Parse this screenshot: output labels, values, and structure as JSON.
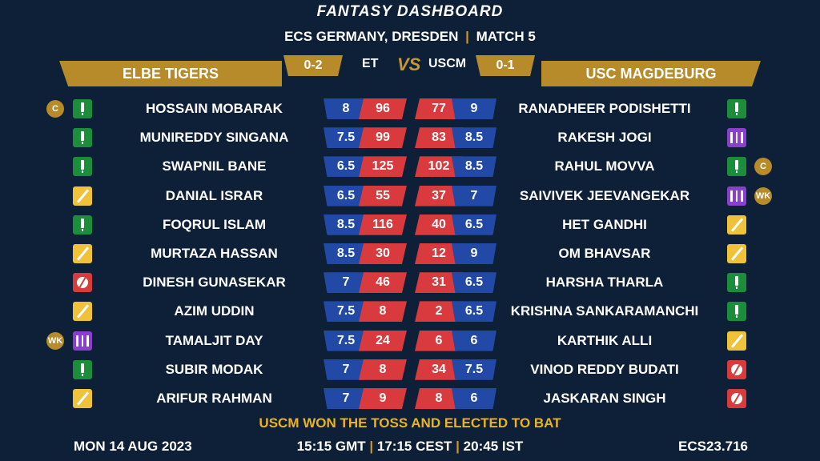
{
  "header": {
    "title": "FANTASY DASHBOARD",
    "subtitle_left": "ECS GERMANY, DRESDEN",
    "subtitle_sep": "|",
    "subtitle_right": "MATCH 5"
  },
  "teams": {
    "left": {
      "name": "ELBE TIGERS",
      "score": "0-2",
      "abbr": "ET"
    },
    "right": {
      "name": "USC MAGDEBURG",
      "score": "0-1",
      "abbr": "USCM"
    },
    "vs_label": "VS"
  },
  "left_players": [
    {
      "name": "HOSSAIN MOBARAK",
      "credits": "8",
      "points": "96",
      "role": "bat",
      "role_icon": "bat-icon",
      "badge": "C"
    },
    {
      "name": "MUNIREDDY SINGANA",
      "credits": "7.5",
      "points": "99",
      "role": "bat",
      "role_icon": "bat-icon",
      "badge": ""
    },
    {
      "name": "SWAPNIL BANE",
      "credits": "6.5",
      "points": "125",
      "role": "bat",
      "role_icon": "bat-icon",
      "badge": ""
    },
    {
      "name": "DANIAL ISRAR",
      "credits": "6.5",
      "points": "55",
      "role": "ar",
      "role_icon": "allrounder-icon",
      "badge": ""
    },
    {
      "name": "FOQRUL ISLAM",
      "credits": "8.5",
      "points": "116",
      "role": "bat",
      "role_icon": "bat-icon",
      "badge": ""
    },
    {
      "name": "MURTAZA HASSAN",
      "credits": "8.5",
      "points": "30",
      "role": "ar",
      "role_icon": "allrounder-icon",
      "badge": ""
    },
    {
      "name": "DINESH GUNASEKAR",
      "credits": "7",
      "points": "46",
      "role": "bowl",
      "role_icon": "ball-icon",
      "badge": ""
    },
    {
      "name": "AZIM UDDIN",
      "credits": "7.5",
      "points": "8",
      "role": "ar",
      "role_icon": "allrounder-icon",
      "badge": ""
    },
    {
      "name": "TAMALJIT DAY",
      "credits": "7.5",
      "points": "24",
      "role": "wk",
      "role_icon": "wicketkeeper-icon",
      "badge": "WK"
    },
    {
      "name": "SUBIR MODAK",
      "credits": "7",
      "points": "8",
      "role": "bat",
      "role_icon": "bat-icon",
      "badge": ""
    },
    {
      "name": "ARIFUR RAHMAN",
      "credits": "7",
      "points": "9",
      "role": "ar",
      "role_icon": "allrounder-icon",
      "badge": ""
    }
  ],
  "right_players": [
    {
      "name": "RANADHEER PODISHETTI",
      "credits": "9",
      "points": "77",
      "role": "bat",
      "role_icon": "bat-icon",
      "badge": ""
    },
    {
      "name": "RAKESH JOGI",
      "credits": "8.5",
      "points": "83",
      "role": "wk",
      "role_icon": "wicketkeeper-icon",
      "badge": ""
    },
    {
      "name": "RAHUL MOVVA",
      "credits": "8.5",
      "points": "102",
      "role": "bat",
      "role_icon": "bat-icon",
      "badge": "C"
    },
    {
      "name": "SAIVIVEK JEEVANGEKAR",
      "credits": "7",
      "points": "37",
      "role": "wk",
      "role_icon": "wicketkeeper-icon",
      "badge": "WK"
    },
    {
      "name": "HET GANDHI",
      "credits": "6.5",
      "points": "40",
      "role": "ar",
      "role_icon": "allrounder-icon",
      "badge": ""
    },
    {
      "name": "OM BHAVSAR",
      "credits": "9",
      "points": "12",
      "role": "ar",
      "role_icon": "allrounder-icon",
      "badge": ""
    },
    {
      "name": "HARSHA THARLA",
      "credits": "6.5",
      "points": "31",
      "role": "bat",
      "role_icon": "bat-icon",
      "badge": ""
    },
    {
      "name": "KRISHNA SANKARAMANCHI",
      "credits": "6.5",
      "points": "2",
      "role": "bat",
      "role_icon": "bat-icon",
      "badge": ""
    },
    {
      "name": "KARTHIK ALLI",
      "credits": "6",
      "points": "6",
      "role": "ar",
      "role_icon": "allrounder-icon",
      "badge": ""
    },
    {
      "name": "VINOD REDDY BUDATI",
      "credits": "7.5",
      "points": "34",
      "role": "bowl",
      "role_icon": "ball-icon",
      "badge": ""
    },
    {
      "name": "JASKARAN SINGH",
      "credits": "6",
      "points": "8",
      "role": "bowl",
      "role_icon": "ball-icon",
      "badge": ""
    }
  ],
  "toss": "USCM WON THE TOSS AND ELECTED TO BAT",
  "footer": {
    "date": "MON 14 AUG 2023",
    "time_gmt": "15:15 GMT",
    "time_cest": "17:15 CEST",
    "time_ist": "20:45 IST",
    "sep": "|",
    "code": "ECS23.716"
  },
  "colors": {
    "background": "#0e1f38",
    "gold": "#b78a2a",
    "credit_blue": "#2249a5",
    "points_red": "#d93a3d",
    "toss_yellow": "#e9b423"
  }
}
